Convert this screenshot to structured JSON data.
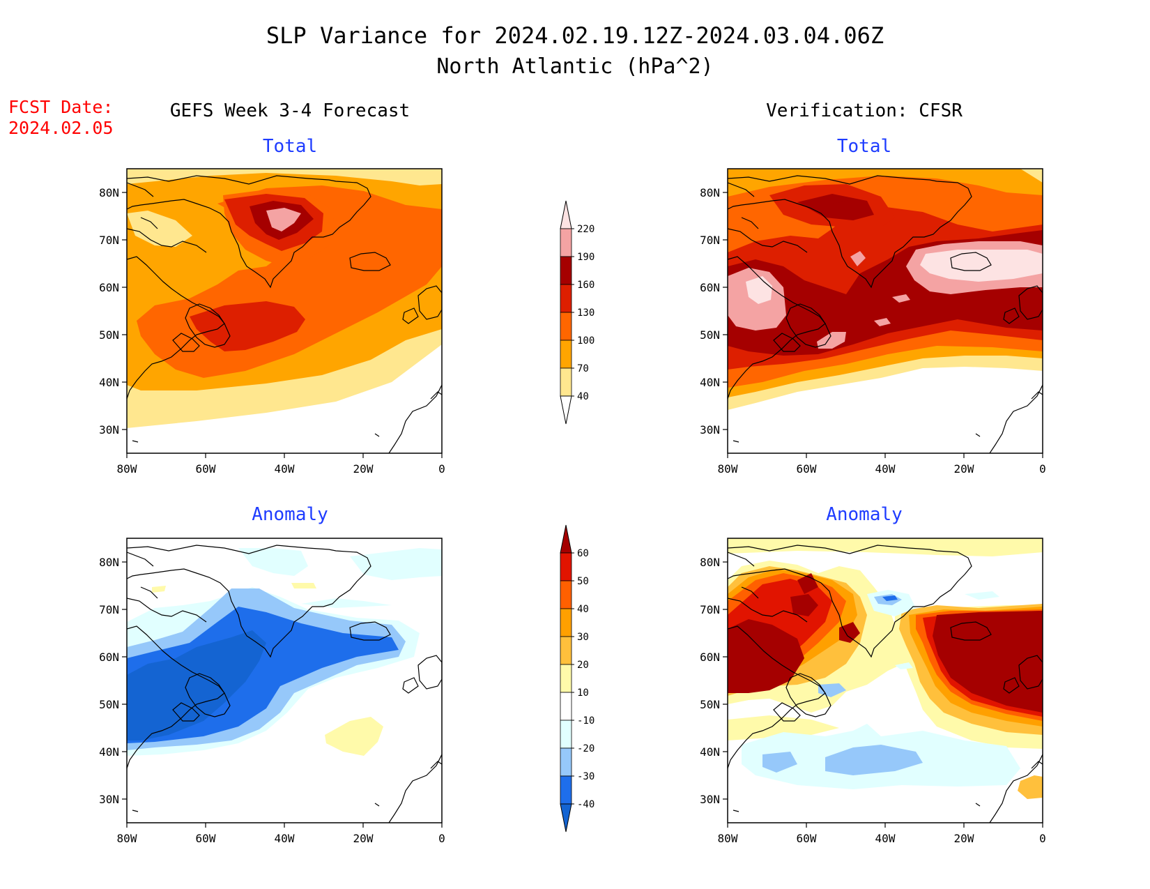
{
  "header": {
    "title": "SLP Variance for 2024.02.19.12Z-2024.03.04.06Z",
    "subtitle": "North Atlantic (hPa^2)",
    "fcst_label": "FCST Date:",
    "fcst_date": "2024.02.05"
  },
  "columns": {
    "left": "GEFS Week 3-4 Forecast",
    "right": "Verification: CFSR"
  },
  "panel_titles": {
    "total": "Total",
    "anomaly": "Anomaly"
  },
  "axes": {
    "x_ticks": [
      "80W",
      "60W",
      "40W",
      "20W",
      "0"
    ],
    "y_ticks": [
      "80N",
      "70N",
      "60N",
      "50N",
      "40N",
      "30N"
    ],
    "lon_range": [
      -80,
      0
    ],
    "lat_range": [
      25,
      85
    ]
  },
  "colorbars": {
    "total": {
      "labels": [
        "40",
        "70",
        "100",
        "130",
        "160",
        "190",
        "220"
      ],
      "colors": [
        "#ffffff",
        "#ffe78f",
        "#ffa500",
        "#ff6600",
        "#dd1f00",
        "#a50000",
        "#f4a3a3",
        "#fde3e3"
      ]
    },
    "anomaly": {
      "labels": [
        "-40",
        "-30",
        "-20",
        "-10",
        "10",
        "20",
        "30",
        "40",
        "50",
        "60"
      ],
      "colors": [
        "#1464d2",
        "#1e6eeb",
        "#96c8fa",
        "#e1ffff",
        "#ffffff",
        "#fffaaa",
        "#ffc03c",
        "#ffa000",
        "#ff6000",
        "#e11400",
        "#a50000"
      ]
    }
  },
  "colors": {
    "title_text": "#000000",
    "fcst_text": "#ff0000",
    "panel_title": "#1e3cff"
  }
}
